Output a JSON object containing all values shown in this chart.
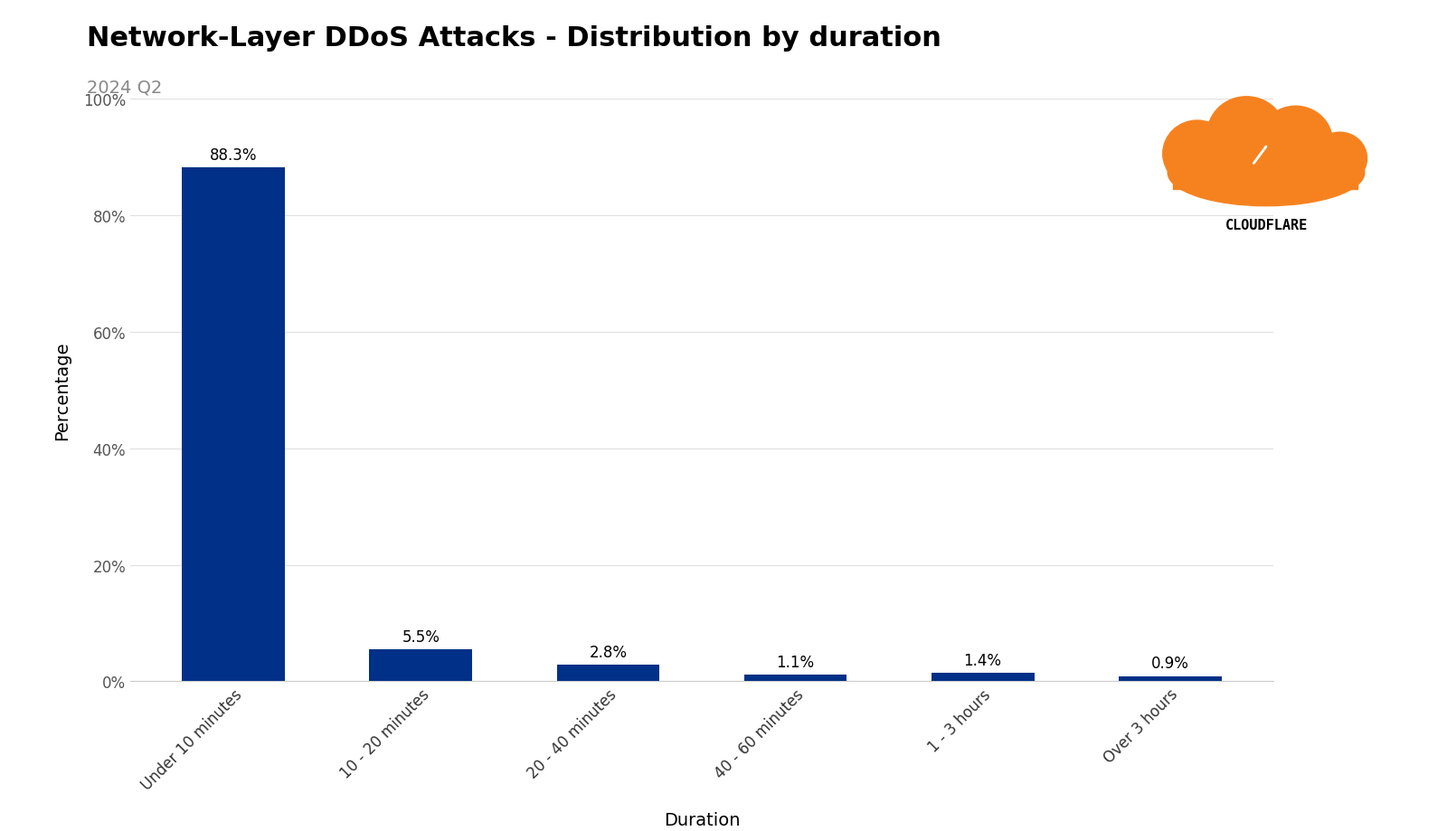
{
  "title": "Network-Layer DDoS Attacks - Distribution by duration",
  "subtitle": "2024 Q2",
  "categories": [
    "Under 10 minutes",
    "10 - 20 minutes",
    "20 - 40 minutes",
    "40 - 60 minutes",
    "1 - 3 hours",
    "Over 3 hours"
  ],
  "values": [
    88.3,
    5.5,
    2.8,
    1.1,
    1.4,
    0.9
  ],
  "labels": [
    "88.3%",
    "5.5%",
    "2.8%",
    "1.1%",
    "1.4%",
    "0.9%"
  ],
  "bar_color": "#003087",
  "background_color": "#ffffff",
  "ylabel": "Percentage",
  "xlabel": "Duration",
  "ylim": [
    0,
    100
  ],
  "yticks": [
    0,
    20,
    40,
    60,
    80,
    100
  ],
  "ytick_labels": [
    "0%",
    "20%",
    "40%",
    "60%",
    "80%",
    "100%"
  ],
  "title_fontsize": 22,
  "subtitle_fontsize": 14,
  "label_fontsize": 12,
  "axis_label_fontsize": 14,
  "tick_fontsize": 12,
  "grid_color": "#e0e0e0",
  "spine_color": "#cccccc",
  "cloud_color": "#F6821F",
  "cloudflare_text": "CLOUDFLARE"
}
